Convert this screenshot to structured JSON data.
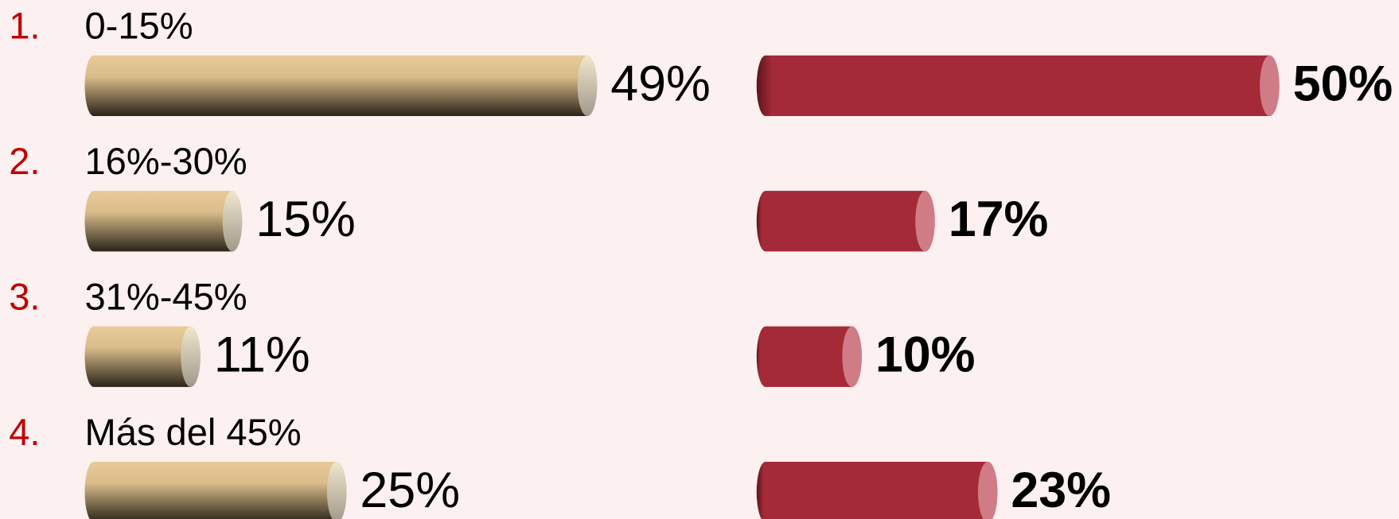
{
  "chart_data": {
    "type": "bar",
    "numbers": [
      "1.",
      "2.",
      "3.",
      "4."
    ],
    "categories": [
      "0-15%",
      "16%-30%",
      "31%-45%",
      "Más del 45%"
    ],
    "series": [
      {
        "color": "#e5c896",
        "values": [
          49,
          15,
          11,
          25
        ],
        "value_labels": [
          "49%",
          "15%",
          "11%",
          "25%"
        ]
      },
      {
        "color": "#a52a37",
        "values": [
          50,
          17,
          10,
          23
        ],
        "value_labels": [
          "50%",
          "17%",
          "10%",
          "23%"
        ]
      }
    ]
  }
}
